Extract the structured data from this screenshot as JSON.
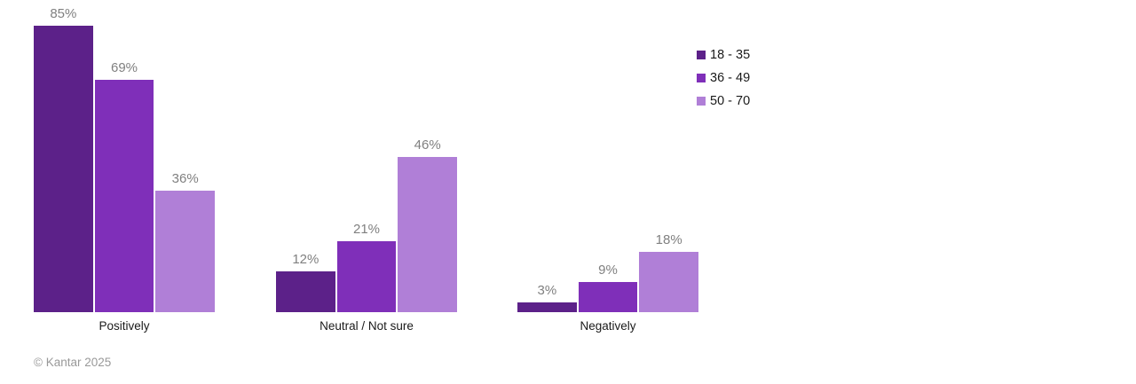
{
  "chart_data": {
    "type": "bar",
    "title": "",
    "xlabel": "",
    "ylabel": "",
    "value_suffix": "%",
    "ylim": [
      0,
      90
    ],
    "grid": false,
    "axis_lines": false,
    "legend_position": "top-right",
    "categories": [
      "Positively",
      "Neutral / Not sure",
      "Negatively"
    ],
    "series": [
      {
        "name": "18 - 35",
        "color": "#5C2189",
        "values": [
          85,
          12,
          3
        ]
      },
      {
        "name": "36 - 49",
        "color": "#7F2FB9",
        "values": [
          69,
          21,
          9
        ]
      },
      {
        "name": "50 - 70",
        "color": "#B07FD7",
        "values": [
          36,
          46,
          18
        ]
      }
    ],
    "data_label_color": "#808080",
    "category_label_color": "#1a1a1a",
    "legend_text_color": "#1a1a1a"
  },
  "footer": {
    "text": "© Kantar 2025",
    "color": "#999999"
  }
}
